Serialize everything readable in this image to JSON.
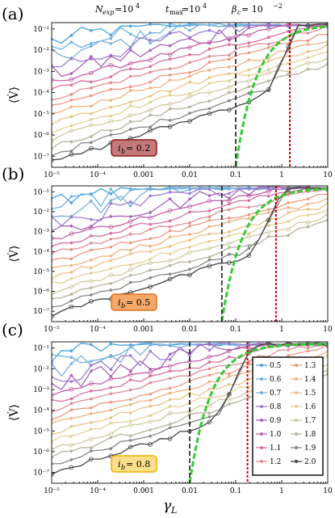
{
  "header": {
    "nexp": "N",
    "nexp_sub": "exp",
    "nexp_val": "=10",
    "nexp_exp": "4",
    "tmax": "t",
    "tmax_sub": "max",
    "tmax_val": "=10",
    "tmax_exp": "4",
    "beta": "β",
    "beta_sub": "c",
    "beta_val": " = 10",
    "beta_exp": "−2"
  },
  "axis_labels": {
    "ylabel_main": "⟨V̇⟩",
    "xlabel_main": "γ",
    "xlabel_sub": "L"
  },
  "x_ticks": [
    "10⁻⁵",
    "10⁻⁴",
    "0.001",
    "0.01",
    "0.1",
    "1",
    "10"
  ],
  "y_ticks": [
    "10⁻⁷",
    "10⁻⁶",
    "10⁻⁵",
    "10⁻⁴",
    "10⁻³",
    "10⁻²",
    "10⁻¹"
  ],
  "colors": {
    "threshold_black": "#333333",
    "threshold_red": "#dd0000",
    "fit_green": "#33cc33",
    "box_a_bg": "#c47a7a",
    "box_a_border": "#8b1a1a",
    "box_b_bg": "#f4a86a",
    "box_b_border": "#e07020",
    "box_c_bg": "#fbe08a",
    "box_c_border": "#f0b000"
  },
  "legend": [
    {
      "label": "0.5",
      "color": "#4aa3df",
      "marker": "circle"
    },
    {
      "label": "0.6",
      "color": "#6cb4e2",
      "marker": "circle-s"
    },
    {
      "label": "0.7",
      "color": "#7cafd9",
      "marker": "triangle"
    },
    {
      "label": "0.8",
      "color": "#9b7fd0",
      "marker": "triangle-down"
    },
    {
      "label": "0.9",
      "color": "#a864b8",
      "marker": "diamond"
    },
    {
      "label": "1.0",
      "color": "#c15fa8",
      "marker": "circle-o"
    },
    {
      "label": "1.1",
      "color": "#d66fa0",
      "marker": "tick"
    },
    {
      "label": "1.2",
      "color": "#e08e95",
      "marker": "line"
    },
    {
      "label": "1.3",
      "color": "#ec9a85",
      "marker": "line"
    },
    {
      "label": "1.4",
      "color": "#eeb486",
      "marker": "triangle"
    },
    {
      "label": "1.5",
      "color": "#e9c48a",
      "marker": "triangle-down"
    },
    {
      "label": "1.6",
      "color": "#e2d297",
      "marker": "diamond"
    },
    {
      "label": "1.7",
      "color": "#cfcba0",
      "marker": "circle-o"
    },
    {
      "label": "1.8",
      "color": "#b7b39f",
      "marker": "tick"
    },
    {
      "label": "1.9",
      "color": "#888888",
      "marker": "triangle-down"
    },
    {
      "label": "2.0",
      "color": "#444444",
      "marker": "circle-o"
    }
  ],
  "chart_data": [
    {
      "panel": "(a)",
      "type": "line",
      "box_label": "i",
      "box_sub": "b",
      "box_value": " = 0.2",
      "xscale": "log",
      "yscale": "log",
      "xlim": [
        1e-05,
        10
      ],
      "ylim": [
        3e-08,
        0.2
      ],
      "black_dashed_x": 0.1,
      "red_dotted_x": 1.5,
      "green_fit_start": 0.1
    },
    {
      "panel": "(b)",
      "type": "line",
      "box_label": "i",
      "box_sub": "b",
      "box_value": " = 0.5",
      "xscale": "log",
      "yscale": "log",
      "xlim": [
        1e-05,
        10
      ],
      "ylim": [
        3e-08,
        0.2
      ],
      "black_dashed_x": 0.05,
      "red_dotted_x": 0.75,
      "green_fit_start": 0.05
    },
    {
      "panel": "(c)",
      "type": "line",
      "box_label": "i",
      "box_sub": "b",
      "box_value": " = 0.8",
      "xscale": "log",
      "yscale": "log",
      "xlim": [
        1e-05,
        10
      ],
      "ylim": [
        3e-08,
        0.2
      ],
      "black_dashed_x": 0.01,
      "red_dotted_x": 0.18,
      "green_fit_start": 0.01,
      "has_legend": true
    }
  ]
}
